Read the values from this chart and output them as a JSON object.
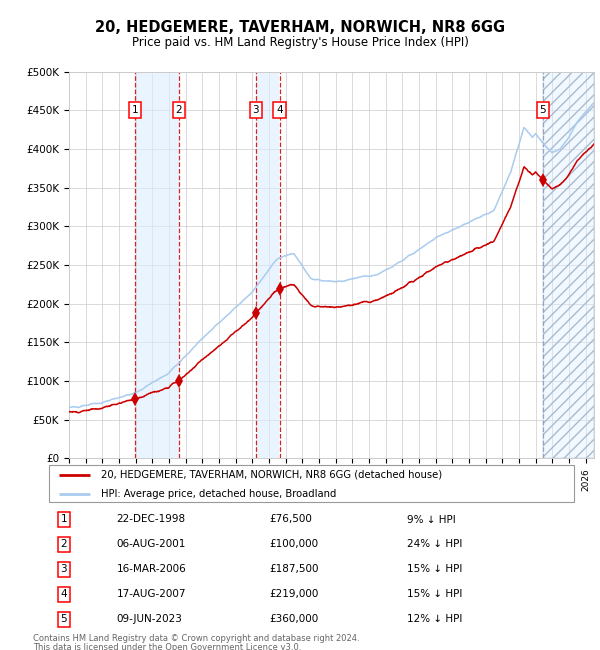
{
  "title": "20, HEDGEMERE, TAVERHAM, NORWICH, NR8 6GG",
  "subtitle": "Price paid vs. HM Land Registry's House Price Index (HPI)",
  "xlim_start": 1995.0,
  "xlim_end": 2026.5,
  "ylim": [
    0,
    500000
  ],
  "yticks": [
    0,
    50000,
    100000,
    150000,
    200000,
    250000,
    300000,
    350000,
    400000,
    450000,
    500000
  ],
  "ytick_labels": [
    "£0",
    "£50K",
    "£100K",
    "£150K",
    "£200K",
    "£250K",
    "£300K",
    "£350K",
    "£400K",
    "£450K",
    "£500K"
  ],
  "sales": [
    {
      "num": 1,
      "date": "22-DEC-1998",
      "year": 1998.97,
      "price": 76500
    },
    {
      "num": 2,
      "date": "06-AUG-2001",
      "year": 2001.6,
      "price": 100000
    },
    {
      "num": 3,
      "date": "16-MAR-2006",
      "year": 2006.21,
      "price": 187500
    },
    {
      "num": 4,
      "date": "17-AUG-2007",
      "year": 2007.63,
      "price": 219000
    },
    {
      "num": 5,
      "date": "09-JUN-2023",
      "year": 2023.44,
      "price": 360000
    }
  ],
  "hpi_line_color": "#aaccee",
  "price_line_color": "#cc0000",
  "marker_color": "#cc0000",
  "shade_color": "#ddeeff",
  "dashed_color_red": "#cc0000",
  "dashed_color_grey": "#8899bb",
  "legend_line1": "20, HEDGEMERE, TAVERHAM, NORWICH, NR8 6GG (detached house)",
  "legend_line2": "HPI: Average price, detached house, Broadland",
  "footer1": "Contains HM Land Registry data © Crown copyright and database right 2024.",
  "footer2": "This data is licensed under the Open Government Licence v3.0.",
  "table_rows": [
    {
      "num": 1,
      "date": "22-DEC-1998",
      "price": "£76,500",
      "pct": "9% ↓ HPI"
    },
    {
      "num": 2,
      "date": "06-AUG-2001",
      "price": "£100,000",
      "pct": "24% ↓ HPI"
    },
    {
      "num": 3,
      "date": "16-MAR-2006",
      "price": "£187,500",
      "pct": "15% ↓ HPI"
    },
    {
      "num": 4,
      "date": "17-AUG-2007",
      "price": "£219,000",
      "pct": "15% ↓ HPI"
    },
    {
      "num": 5,
      "date": "09-JUN-2023",
      "price": "£360,000",
      "pct": "12% ↓ HPI"
    }
  ]
}
